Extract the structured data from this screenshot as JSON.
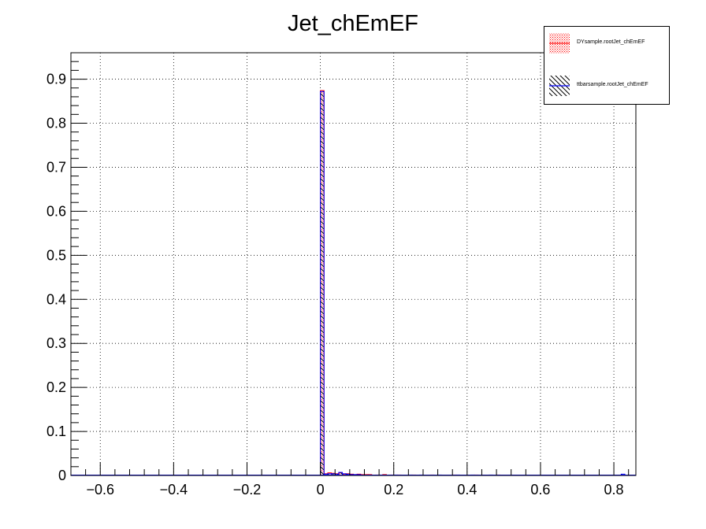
{
  "chart_data": {
    "type": "bar",
    "title": "Jet_chEmEF",
    "xlabel": "",
    "ylabel": "",
    "xlim": [
      -0.68,
      0.86
    ],
    "ylim": [
      0,
      0.96
    ],
    "x_ticks": [
      "−0.6",
      "−0.4",
      "−0.2",
      "0",
      "0.2",
      "0.4",
      "0.6",
      "0.8"
    ],
    "x_tick_values": [
      -0.6,
      -0.4,
      -0.2,
      0,
      0.2,
      0.4,
      0.6,
      0.8
    ],
    "y_ticks": [
      "0",
      "0.1",
      "0.2",
      "0.3",
      "0.4",
      "0.5",
      "0.6",
      "0.7",
      "0.8",
      "0.9"
    ],
    "y_tick_values": [
      0,
      0.1,
      0.2,
      0.3,
      0.4,
      0.5,
      0.6,
      0.7,
      0.8,
      0.9
    ],
    "grid": true,
    "legend_position": "top-right",
    "bin_width": 0.01,
    "series": [
      {
        "name": "DYsample.rootJet_chEmEF",
        "color": "#ff0000",
        "fill": "red-dots",
        "bins": [
          {
            "x": 0.0,
            "y": 0.874
          },
          {
            "x": 0.01,
            "y": 0.004
          },
          {
            "x": 0.02,
            "y": 0.006
          },
          {
            "x": 0.03,
            "y": 0.005
          },
          {
            "x": 0.04,
            "y": 0.004
          },
          {
            "x": 0.05,
            "y": 0.006
          },
          {
            "x": 0.06,
            "y": 0.003
          },
          {
            "x": 0.07,
            "y": 0.004
          },
          {
            "x": 0.08,
            "y": 0.003
          },
          {
            "x": 0.09,
            "y": 0.002
          },
          {
            "x": 0.1,
            "y": 0.003
          },
          {
            "x": 0.11,
            "y": 0.002
          },
          {
            "x": 0.12,
            "y": 0.002
          },
          {
            "x": 0.13,
            "y": 0.002
          },
          {
            "x": 0.15,
            "y": 0.001
          },
          {
            "x": 0.17,
            "y": 0.002
          },
          {
            "x": 0.19,
            "y": 0.001
          },
          {
            "x": 0.21,
            "y": 0.001
          },
          {
            "x": 0.25,
            "y": 0.001
          },
          {
            "x": 0.3,
            "y": 0.001
          },
          {
            "x": 0.36,
            "y": 0.001
          },
          {
            "x": 0.42,
            "y": 0.001
          },
          {
            "x": 0.48,
            "y": 0.001
          }
        ]
      },
      {
        "name": "ttbarsample.rootJet_chEmEF",
        "color": "#0000ff",
        "fill": "black-hatch",
        "bins": [
          {
            "x": 0.0,
            "y": 0.872
          },
          {
            "x": 0.01,
            "y": 0.003
          },
          {
            "x": 0.02,
            "y": 0.004
          },
          {
            "x": 0.03,
            "y": 0.004
          },
          {
            "x": 0.04,
            "y": 0.003
          },
          {
            "x": 0.05,
            "y": 0.007
          },
          {
            "x": 0.06,
            "y": 0.004
          },
          {
            "x": 0.07,
            "y": 0.003
          },
          {
            "x": 0.08,
            "y": 0.002
          },
          {
            "x": 0.09,
            "y": 0.002
          },
          {
            "x": 0.1,
            "y": 0.002
          },
          {
            "x": 0.11,
            "y": 0.001
          },
          {
            "x": 0.13,
            "y": 0.001
          },
          {
            "x": 0.16,
            "y": 0.001
          },
          {
            "x": 0.2,
            "y": 0.001
          },
          {
            "x": 0.24,
            "y": 0.001
          },
          {
            "x": 0.27,
            "y": 0.001
          },
          {
            "x": 0.32,
            "y": 0.001
          },
          {
            "x": 0.37,
            "y": 0.001
          },
          {
            "x": 0.41,
            "y": 0.001
          },
          {
            "x": 0.46,
            "y": 0.001
          },
          {
            "x": 0.82,
            "y": 0.003
          }
        ]
      }
    ]
  }
}
